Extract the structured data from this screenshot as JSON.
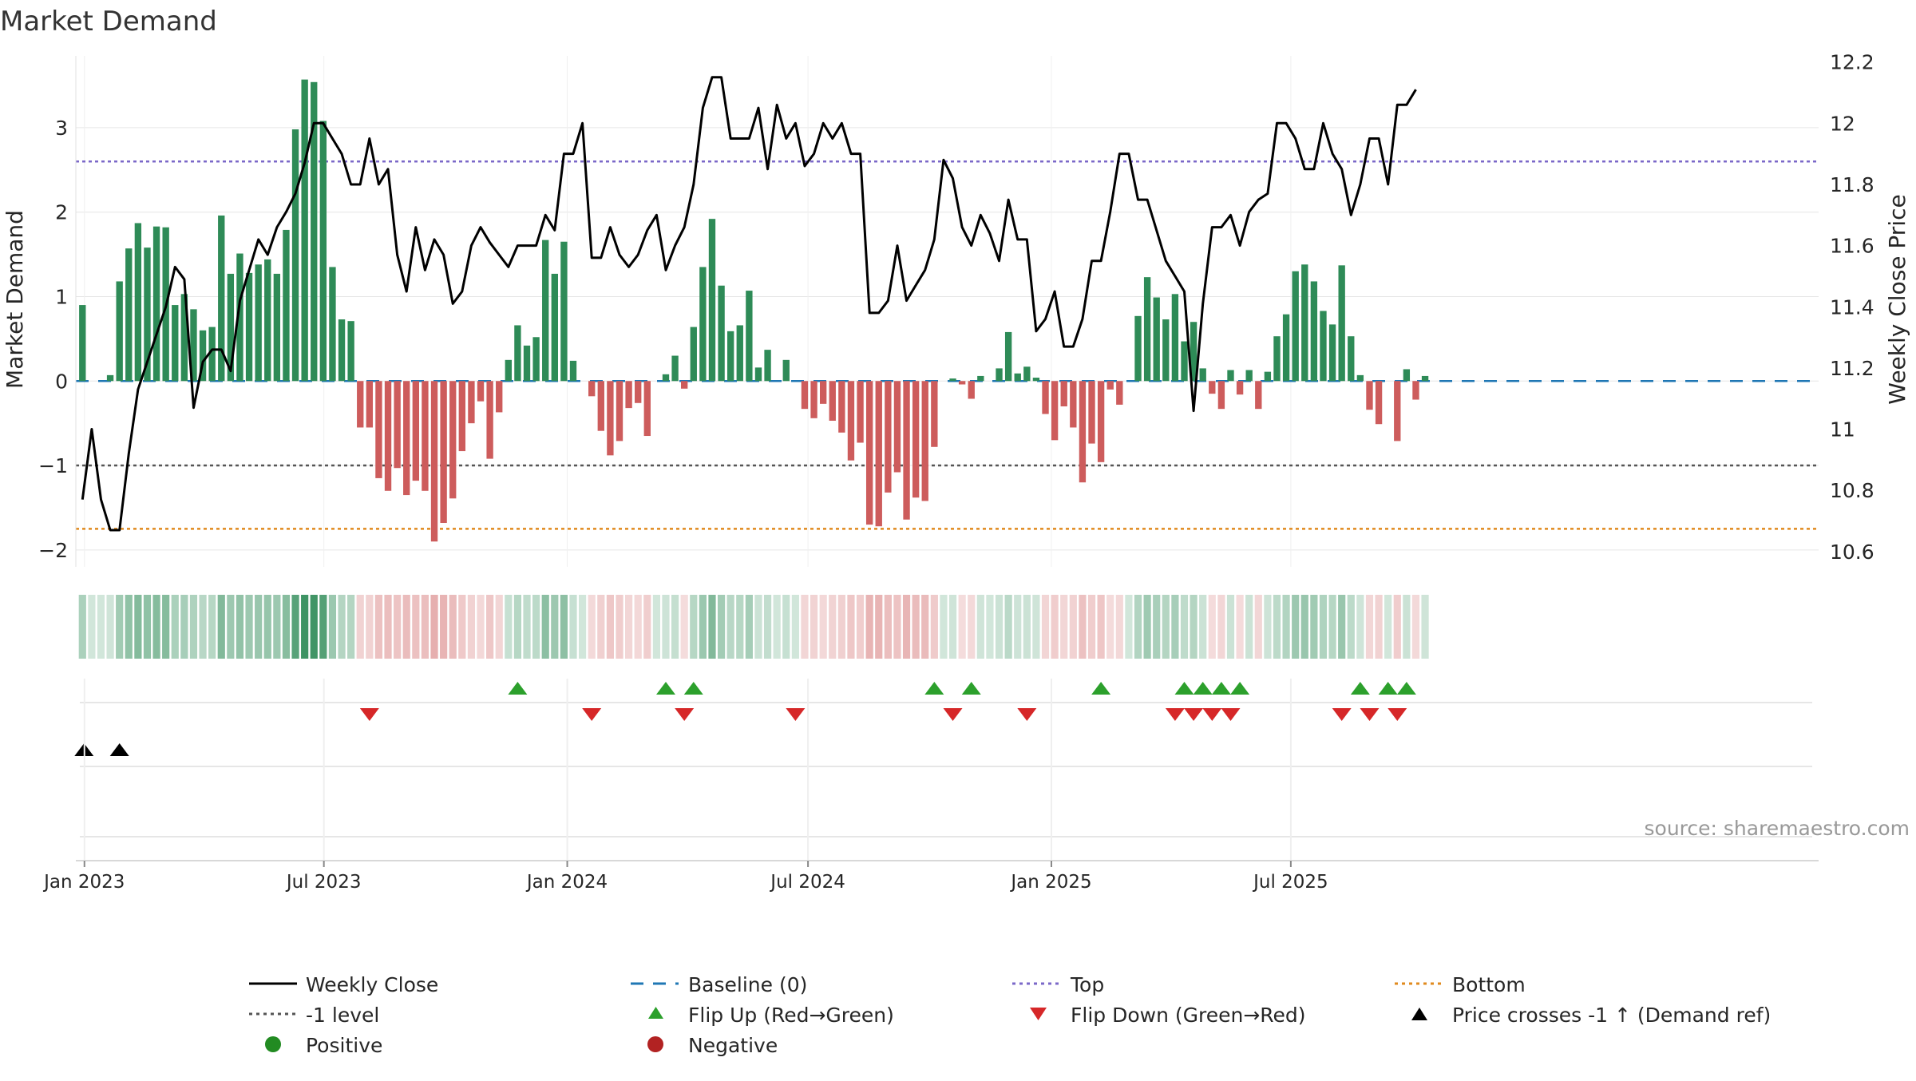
{
  "page_title": "Market Demand",
  "source_label": "source: sharemaestro.com",
  "colors": {
    "positive_bar": "#2e8b57",
    "negative_bar": "#cd5c5c",
    "price_line": "#000000",
    "baseline": "#1f77b4",
    "top_line": "#7b68c8",
    "minus1_line": "#555555",
    "bottom_line": "#e08a1e",
    "flip_up": "#2ca02c",
    "flip_down": "#d62728",
    "cross": "#000000",
    "grid": "#e6e6e6"
  },
  "chart_data": {
    "type": "bar",
    "title": "Market Demand",
    "xlabel": "",
    "ylabel": "Market Demand",
    "ylabel_right": "Weekly Close Price",
    "ylim": [
      -2.2,
      3.85
    ],
    "ylim_right": [
      10.55,
      12.22
    ],
    "yticks": [
      -2,
      -1,
      0,
      1,
      2,
      3
    ],
    "yticks_right": [
      10.6,
      10.8,
      11,
      11.2,
      11.4,
      11.6,
      11.8,
      12,
      12.2
    ],
    "ytick_labels": [
      "−2",
      "−1",
      "0",
      "1",
      "2",
      "3"
    ],
    "ytick_labels_right": [
      "10.6",
      "10.8",
      "11",
      "11.2",
      "11.4",
      "11.6",
      "11.8",
      "12",
      "12.2"
    ],
    "start_week_offset_days": -1.5,
    "week_days": 7,
    "x_axis_days_range": [
      -6.5,
      1311
    ],
    "x_ticks": [
      {
        "label": "Jan 2023",
        "day": 0
      },
      {
        "label": "Jul 2023",
        "day": 181
      },
      {
        "label": "Jan 2024",
        "day": 365
      },
      {
        "label": "Jul 2024",
        "day": 547
      },
      {
        "label": "Jan 2025",
        "day": 731
      },
      {
        "label": "Jul 2025",
        "day": 912
      }
    ],
    "reference_lines": {
      "baseline": 0,
      "top": 2.6,
      "minus1": -1,
      "bottom": -1.75
    },
    "series": [
      {
        "name": "Market Demand",
        "kind": "bar",
        "values": [
          0.9,
          0,
          0,
          0.07,
          1.18,
          1.57,
          1.87,
          1.58,
          1.83,
          1.82,
          0.9,
          1.03,
          0.85,
          0.6,
          0.64,
          1.96,
          1.27,
          1.51,
          1.28,
          1.38,
          1.44,
          1.27,
          1.79,
          2.98,
          3.57,
          3.54,
          3.08,
          1.35,
          0.73,
          0.71,
          -0.55,
          -0.55,
          -1.15,
          -1.3,
          -1.03,
          -1.35,
          -1.18,
          -1.3,
          -1.9,
          -1.68,
          -1.39,
          -0.83,
          -0.5,
          -0.24,
          -0.92,
          -0.37,
          0.25,
          0.66,
          0.42,
          0.52,
          1.67,
          1.27,
          1.65,
          0.24,
          0,
          -0.18,
          -0.59,
          -0.88,
          -0.71,
          -0.32,
          -0.26,
          -0.65,
          0,
          0.08,
          0.3,
          -0.09,
          0.64,
          1.35,
          1.92,
          1.13,
          0.59,
          0.66,
          1.07,
          0.16,
          0.37,
          0,
          0.25,
          0,
          -0.33,
          -0.44,
          -0.27,
          -0.47,
          -0.61,
          -0.94,
          -0.73,
          -1.7,
          -1.72,
          -1.32,
          -1.08,
          -1.64,
          -1.38,
          -1.42,
          -0.78,
          0,
          0.03,
          -0.04,
          -0.21,
          0.06,
          0,
          0.15,
          0.58,
          0.09,
          0.17,
          0.04,
          -0.39,
          -0.7,
          -0.3,
          -0.55,
          -1.2,
          -0.74,
          -0.96,
          -0.1,
          -0.28,
          0,
          0.77,
          1.23,
          0.99,
          0.73,
          1.03,
          0.47,
          0.7,
          0.15,
          -0.15,
          -0.33,
          0.13,
          -0.16,
          0.13,
          -0.33,
          0.11,
          0.53,
          0.79,
          1.3,
          1.38,
          1.18,
          0.83,
          0.67,
          1.37,
          0.53,
          0.07,
          -0.34,
          -0.51,
          0,
          -0.71,
          0.14,
          -0.22,
          0.06
        ]
      },
      {
        "name": "Weekly Close",
        "kind": "line",
        "values": [
          10.77,
          11.0,
          10.77,
          10.67,
          10.67,
          10.92,
          11.13,
          11.22,
          11.31,
          11.4,
          11.53,
          11.49,
          11.07,
          11.22,
          11.26,
          11.26,
          11.19,
          11.42,
          11.52,
          11.62,
          11.57,
          11.66,
          11.71,
          11.77,
          11.87,
          12.0,
          12.0,
          11.95,
          11.9,
          11.8,
          11.8,
          11.95,
          11.8,
          11.85,
          11.57,
          11.45,
          11.66,
          11.52,
          11.62,
          11.57,
          11.41,
          11.45,
          11.6,
          11.66,
          11.61,
          11.57,
          11.53,
          11.6,
          11.6,
          11.6,
          11.7,
          11.65,
          11.9,
          11.9,
          12.0,
          11.56,
          11.56,
          11.66,
          11.57,
          11.53,
          11.57,
          11.65,
          11.7,
          11.52,
          11.6,
          11.66,
          11.8,
          12.05,
          12.15,
          12.15,
          11.95,
          11.95,
          11.95,
          12.05,
          11.85,
          12.06,
          11.95,
          12.0,
          11.86,
          11.9,
          12.0,
          11.95,
          12.0,
          11.9,
          11.9,
          11.38,
          11.38,
          11.42,
          11.6,
          11.42,
          11.47,
          11.52,
          11.62,
          11.88,
          11.82,
          11.66,
          11.6,
          11.7,
          11.64,
          11.55,
          11.75,
          11.62,
          11.62,
          11.32,
          11.36,
          11.45,
          11.27,
          11.27,
          11.36,
          11.55,
          11.55,
          11.71,
          11.9,
          11.9,
          11.75,
          11.75,
          11.65,
          11.55,
          11.5,
          11.45,
          11.06,
          11.41,
          11.66,
          11.66,
          11.7,
          11.6,
          11.71,
          11.75,
          11.77,
          12.0,
          12.0,
          11.95,
          11.85,
          11.85,
          12.0,
          11.9,
          11.85,
          11.7,
          11.8,
          11.95,
          11.95,
          11.8,
          12.06,
          12.06,
          12.11
        ]
      }
    ],
    "heat_strip": {
      "name": "Demand intensity strip",
      "values_from": "Market Demand"
    },
    "flip_up_weeks": [
      47,
      63,
      66,
      92,
      96,
      110,
      119,
      121,
      123,
      125,
      138,
      141,
      143
    ],
    "flip_down_weeks": [
      31,
      55,
      65,
      77,
      94,
      102,
      118,
      120,
      122,
      124,
      136,
      139,
      142
    ],
    "price_cross_weeks": [
      0,
      4
    ],
    "legend": {
      "position": "bottom",
      "items": [
        {
          "label": "Weekly Close",
          "marker": "line"
        },
        {
          "label": "Baseline (0)",
          "marker": "dash"
        },
        {
          "label": "Top",
          "marker": "dot-line"
        },
        {
          "label": "Bottom",
          "marker": "dot-line-orange"
        },
        {
          "label": "-1 level",
          "marker": "dot-line-gray"
        },
        {
          "label": "Flip Up (Red→Green)",
          "marker": "triangle-up-green"
        },
        {
          "label": "Flip Down (Green→Red)",
          "marker": "triangle-down-red"
        },
        {
          "label": "Price crosses -1 ↑ (Demand ref)",
          "marker": "triangle-up-black"
        },
        {
          "label": "Positive",
          "marker": "circle-green"
        },
        {
          "label": "Negative",
          "marker": "circle-red"
        }
      ]
    }
  }
}
